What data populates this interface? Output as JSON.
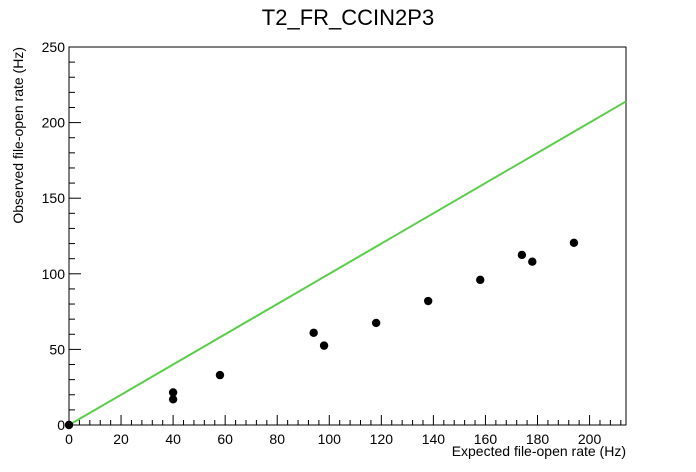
{
  "chart_data": {
    "type": "scatter",
    "title": "T2_FR_CCIN2P3",
    "xlabel": "Expected file-open rate (Hz)",
    "ylabel": "Observed file-open rate (Hz)",
    "xlim": [
      0,
      214
    ],
    "ylim": [
      0,
      250
    ],
    "x_ticks": [
      0,
      20,
      40,
      60,
      80,
      100,
      120,
      140,
      160,
      180,
      200
    ],
    "y_ticks": [
      0,
      50,
      100,
      150,
      200,
      250
    ],
    "x_tick_labels": [
      "0",
      "20",
      "40",
      "60",
      "80",
      "100",
      "120",
      "140",
      "160",
      "180",
      "200"
    ],
    "y_tick_labels": [
      "0",
      "50",
      "100",
      "150",
      "200",
      "250"
    ],
    "x_minor_step": 4,
    "y_minor_step": 10,
    "grid": false,
    "series": [
      {
        "color": "#000000",
        "points": [
          {
            "x": 0,
            "y": 0
          },
          {
            "x": 40,
            "y": 21.5
          },
          {
            "x": 40,
            "y": 17
          },
          {
            "x": 58,
            "y": 33
          },
          {
            "x": 94,
            "y": 61
          },
          {
            "x": 98,
            "y": 52.5
          },
          {
            "x": 118,
            "y": 67.5
          },
          {
            "x": 138,
            "y": 82
          },
          {
            "x": 158,
            "y": 96
          },
          {
            "x": 174,
            "y": 112.5
          },
          {
            "x": 178,
            "y": 108
          },
          {
            "x": 194,
            "y": 120.5
          }
        ]
      }
    ],
    "reference_line": {
      "type": "y=x",
      "color": "#5acd4a",
      "from": [
        0,
        0
      ],
      "to": [
        214,
        214
      ]
    }
  }
}
